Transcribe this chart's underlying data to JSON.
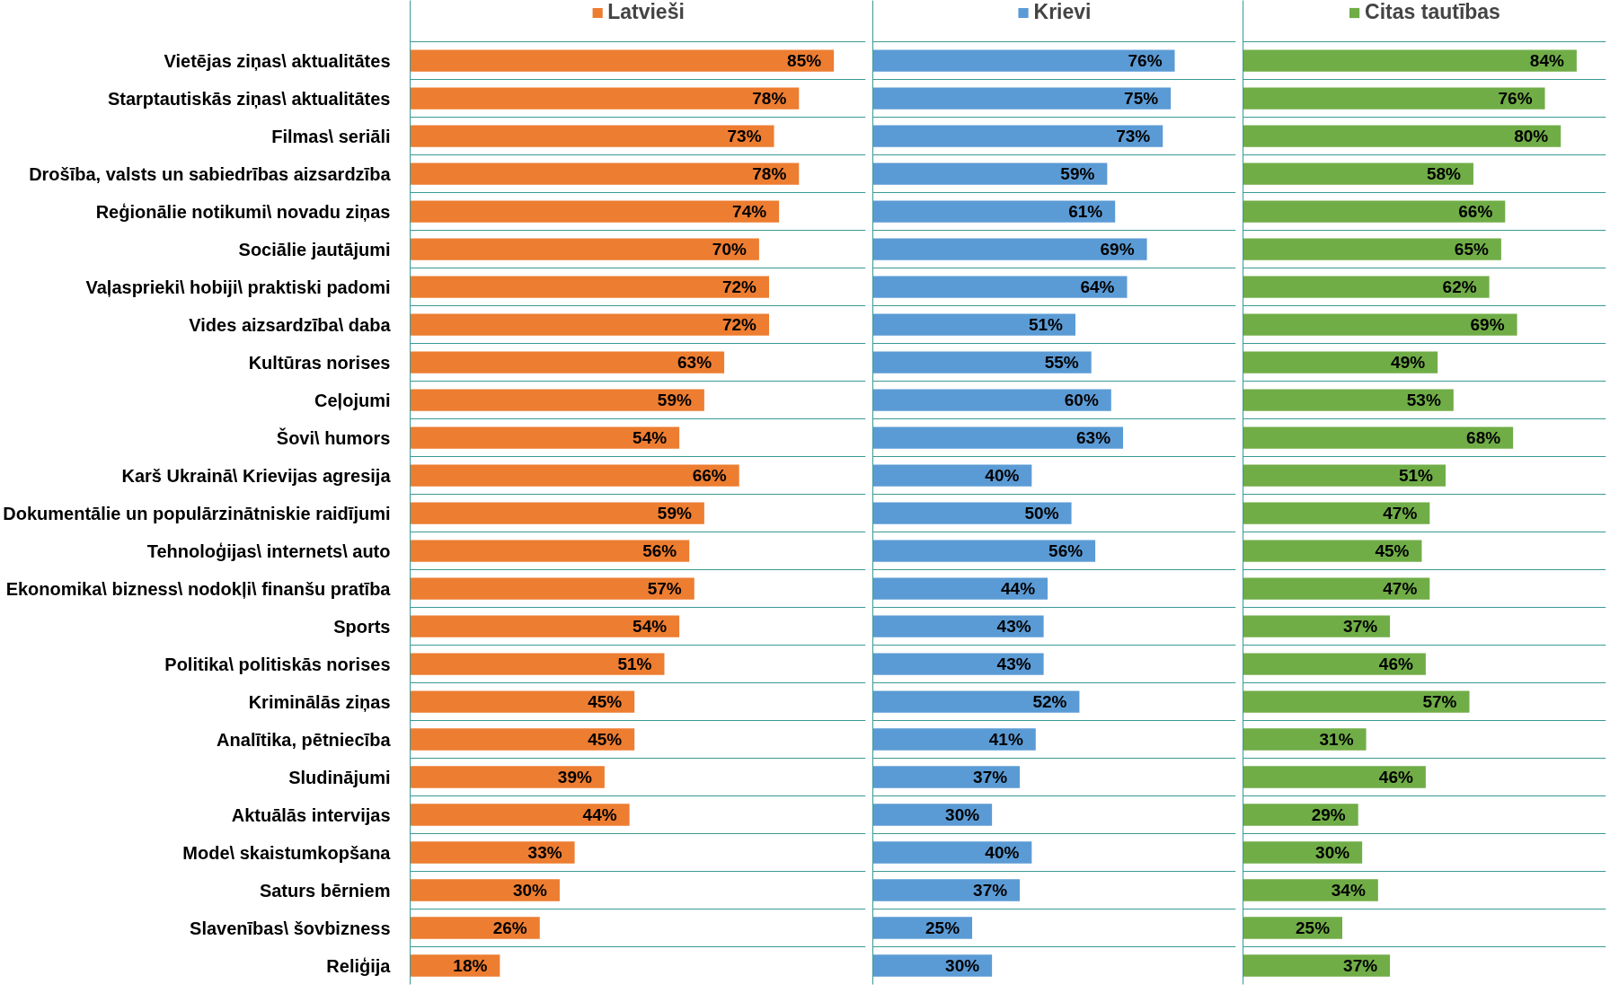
{
  "chart_data": [
    {
      "type": "bar",
      "orientation": "horizontal",
      "categories": [
        "Vietējas ziņas\\ aktualitātes",
        "Starptautiskās ziņas\\ aktualitātes",
        "Filmas\\ seriāli",
        "Drošība, valsts un sabiedrības aizsardzība",
        "Reģionālie notikumi\\ novadu ziņas",
        "Sociālie jautājumi",
        "Vaļasprieki\\ hobiji\\ praktiski padomi",
        "Vides aizsardzība\\ daba",
        "Kultūras norises",
        "Ceļojumi",
        "Šovi\\ humors",
        "Karš Ukrainā\\ Krievijas agresija",
        "Dokumentālie un populārzinātniskie raidījumi",
        "Tehnoloģijas\\ internets\\ auto",
        "Ekonomika\\ bizness\\ nodokļi\\ finanšu pratība",
        "Sports",
        "Politika\\ politiskās norises",
        "Kriminālās ziņas",
        "Analītika, pētniecība",
        "Sludinājumi",
        "Aktuālās intervijas",
        "Mode\\ skaistumkopšana",
        "Saturs bērniem",
        "Slavenības\\ šovbizness",
        "Reliģija"
      ],
      "series": [
        {
          "name": "Latvieši",
          "color": "#ed7d31",
          "values": [
            85,
            78,
            73,
            78,
            74,
            70,
            72,
            72,
            63,
            59,
            54,
            66,
            59,
            56,
            57,
            54,
            51,
            45,
            45,
            39,
            44,
            33,
            30,
            26,
            18
          ],
          "value_labels": [
            "85%",
            "78%",
            "73%",
            "78%",
            "74%",
            "70%",
            "72%",
            "72%",
            "63%",
            "59%",
            "54%",
            "66%",
            "59%",
            "56%",
            "57%",
            "54%",
            "51%",
            "45%",
            "45%",
            "39%",
            "44%",
            "33%",
            "30%",
            "26%",
            "18%"
          ]
        }
      ],
      "grid": "y",
      "legend": "top",
      "tick_labels": "y"
    },
    {
      "type": "bar",
      "orientation": "horizontal",
      "series": [
        {
          "name": "Krievi",
          "color": "#5b9bd5",
          "values": [
            76,
            75,
            73,
            59,
            61,
            69,
            64,
            51,
            55,
            60,
            63,
            40,
            50,
            56,
            44,
            43,
            43,
            52,
            41,
            37,
            30,
            40,
            37,
            25,
            30
          ],
          "value_labels": [
            "76%",
            "75%",
            "73%",
            "59%",
            "61%",
            "69%",
            "64%",
            "51%",
            "55%",
            "60%",
            "63%",
            "40%",
            "50%",
            "56%",
            "44%",
            "43%",
            "43%",
            "52%",
            "41%",
            "37%",
            "30%",
            "40%",
            "37%",
            "25%",
            "30%"
          ]
        }
      ],
      "grid": "y",
      "legend": "top",
      "tick_labels": false
    },
    {
      "type": "bar",
      "orientation": "horizontal",
      "series": [
        {
          "name": "Citas tautības",
          "color": "#70ad47",
          "values": [
            84,
            76,
            80,
            58,
            66,
            65,
            62,
            69,
            49,
            53,
            68,
            51,
            47,
            45,
            47,
            37,
            46,
            57,
            31,
            46,
            29,
            30,
            34,
            25,
            37
          ],
          "value_labels": [
            "84%",
            "76%",
            "80%",
            "58%",
            "66%",
            "65%",
            "62%",
            "69%",
            "49%",
            "53%",
            "68%",
            "51%",
            "47%",
            "45%",
            "47%",
            "37%",
            "46%",
            "57%",
            "31%",
            "46%",
            "29%",
            "30%",
            "34%",
            "25%",
            "37%"
          ]
        }
      ],
      "grid": "y",
      "legend": "top",
      "tick_labels": false
    }
  ]
}
